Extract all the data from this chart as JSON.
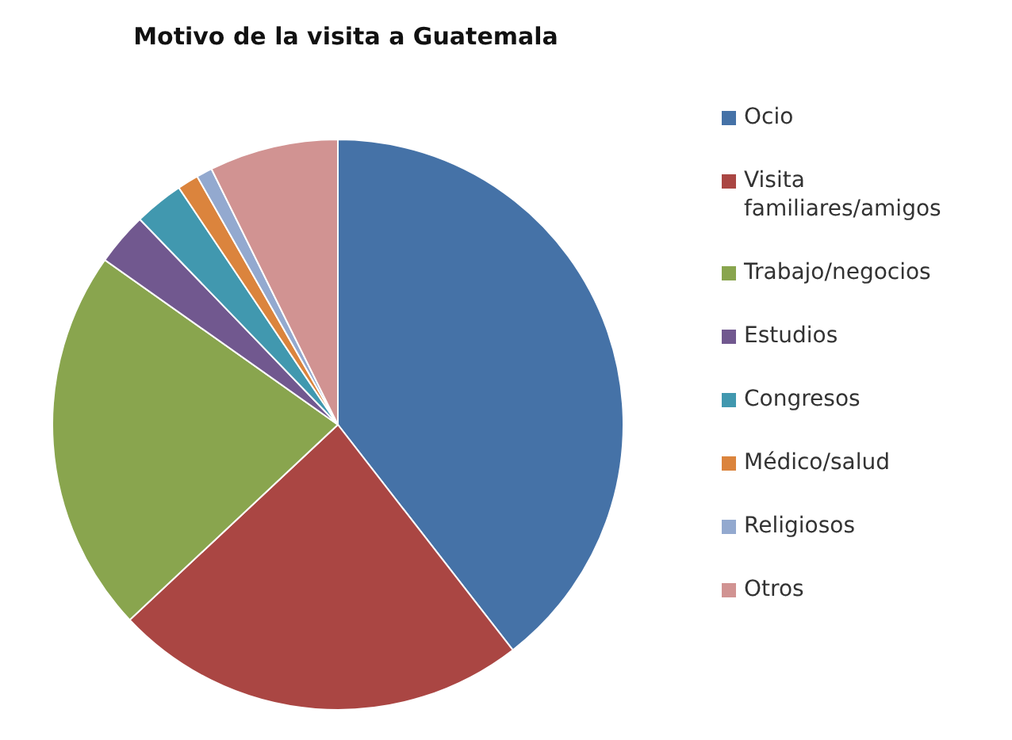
{
  "chart_data": {
    "type": "pie",
    "title": "Motivo de la visita a Guatemala",
    "categories": [
      "Ocio",
      "Visita familiares/amigos",
      "Trabajo/negocios",
      "Estudios",
      "Congresos",
      "Médico/salud",
      "Religiosos",
      "Otros"
    ],
    "values": [
      39.5,
      23.5,
      21.8,
      3.0,
      2.8,
      1.2,
      0.9,
      7.3
    ],
    "colors": [
      "#4572a7",
      "#aa4643",
      "#89a54e",
      "#71588f",
      "#4198af",
      "#db843d",
      "#93a9cf",
      "#d19392"
    ],
    "legend": "right"
  }
}
